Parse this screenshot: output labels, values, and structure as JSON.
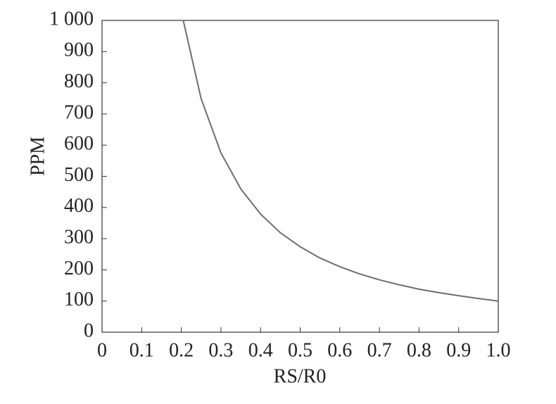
{
  "chart_data": {
    "type": "line",
    "xlabel": "RS/R0",
    "ylabel": "PPM",
    "x": [
      0.205,
      0.25,
      0.3,
      0.35,
      0.4,
      0.45,
      0.5,
      0.55,
      0.6,
      0.65,
      0.7,
      0.75,
      0.8,
      0.85,
      0.9,
      0.95,
      1.0
    ],
    "values": [
      1000,
      749,
      575,
      460,
      379,
      319,
      274,
      238,
      210,
      187,
      168,
      152,
      138,
      127,
      117,
      108,
      100
    ],
    "color": "#6e6e6e",
    "xlim": [
      0,
      1
    ],
    "ylim": [
      0,
      1000
    ],
    "xticks": [
      0,
      0.1,
      0.2,
      0.3,
      0.4,
      0.5,
      0.6,
      0.7,
      0.8,
      0.9,
      {
        "value": 1,
        "label": "1.0"
      }
    ],
    "yticks": [
      0,
      100,
      200,
      300,
      400,
      500,
      600,
      700,
      800,
      900,
      {
        "value": 1000,
        "label": "1 000"
      }
    ],
    "grid": false
  }
}
